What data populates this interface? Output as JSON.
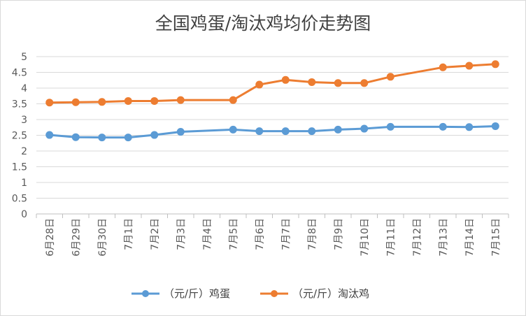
{
  "chart_data": {
    "type": "line",
    "title": "全国鸡蛋/淘汰鸡均价走势图",
    "categories": [
      "6月28日",
      "6月29日",
      "6月30日",
      "7月1日",
      "7月2日",
      "7月3日",
      "7月4日",
      "7月5日",
      "7月6日",
      "7月7日",
      "7月8日",
      "7月9日",
      "7月10日",
      "7月11日",
      "7月12日",
      "7月13日",
      "7月14日",
      "7月15日"
    ],
    "series": [
      {
        "name": "（元/斤）鸡蛋",
        "color": "#5b9bd5",
        "values": [
          2.51,
          2.44,
          2.43,
          2.43,
          2.51,
          2.61,
          null,
          2.68,
          2.63,
          2.63,
          2.63,
          2.68,
          2.71,
          2.77,
          null,
          2.77,
          2.76,
          2.79
        ]
      },
      {
        "name": "（元/斤）淘汰鸡",
        "color": "#ed7d31",
        "values": [
          3.54,
          3.55,
          3.56,
          3.59,
          3.59,
          3.62,
          null,
          3.62,
          4.11,
          4.26,
          4.19,
          4.16,
          4.16,
          4.36,
          null,
          4.66,
          4.71,
          4.76
        ]
      }
    ],
    "ylim": [
      0,
      5
    ],
    "yticks": [
      "0",
      "0.5",
      "1",
      "1.5",
      "2",
      "2.5",
      "3",
      "3.5",
      "4",
      "4.5",
      "5"
    ],
    "grid": true,
    "legend": "bottom"
  }
}
